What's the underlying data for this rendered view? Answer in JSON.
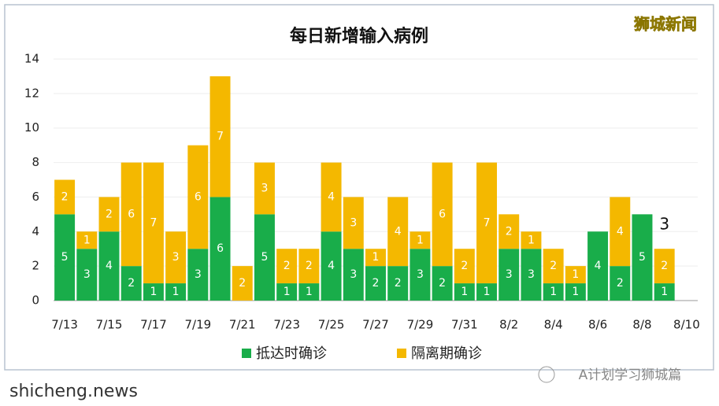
{
  "chart_data": {
    "type": "stacked-bar",
    "title": "每日新增输入病例",
    "categories": [
      "7/13",
      null,
      "7/15",
      null,
      "7/17",
      null,
      "7/19",
      null,
      "7/21",
      null,
      "7/23",
      null,
      "7/25",
      null,
      "7/27",
      null,
      "7/29",
      null,
      "7/31",
      null,
      "8/2",
      null,
      "8/4",
      null,
      "8/6",
      null,
      "8/8",
      null,
      "8/10"
    ],
    "series": [
      {
        "name": "抵达时确诊",
        "color": "#19ad4a",
        "values": [
          5,
          3,
          4,
          2,
          1,
          1,
          3,
          6,
          0,
          5,
          1,
          1,
          4,
          3,
          2,
          2,
          3,
          2,
          1,
          1,
          3,
          3,
          1,
          1,
          4,
          2,
          5,
          1,
          null
        ]
      },
      {
        "name": "隔离期确诊",
        "color": "#f4b800",
        "values": [
          2,
          1,
          2,
          6,
          7,
          3,
          6,
          7,
          2,
          3,
          2,
          2,
          4,
          3,
          1,
          4,
          1,
          6,
          2,
          7,
          2,
          1,
          2,
          1,
          0,
          4,
          0,
          2,
          null
        ]
      }
    ],
    "annotation": "3",
    "ylim": [
      0,
      14
    ],
    "yticks": [
      0,
      2,
      4,
      6,
      8,
      10,
      12,
      14
    ],
    "grid": true,
    "legend": "bottom"
  },
  "watermarks": {
    "top_right": "狮城新闻",
    "bottom_right": "A计划学习狮城篇",
    "bottom_left": "shicheng.news"
  }
}
